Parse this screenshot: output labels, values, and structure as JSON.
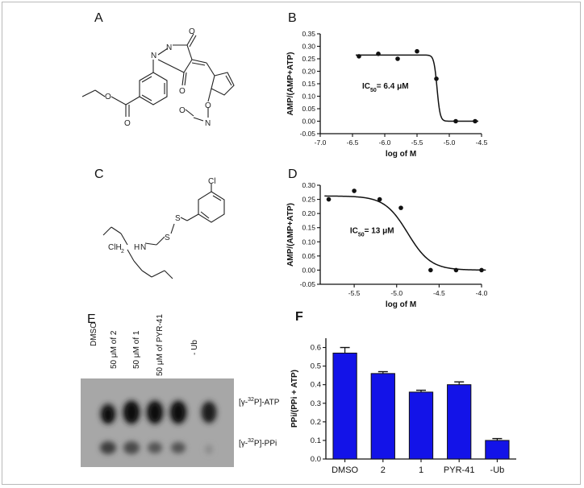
{
  "panels": {
    "a": "A",
    "b": "B",
    "c": "C",
    "d": "D",
    "e": "E",
    "f": "F"
  },
  "molecule_a": {
    "atoms": [
      "O",
      "O",
      "O",
      "N",
      "N",
      "O",
      "O",
      "O",
      "N"
    ]
  },
  "molecule_c": {
    "atoms": [
      "Cl",
      "S",
      "S",
      "N",
      "ClH",
      "2",
      "H"
    ]
  },
  "gel": {
    "lanes": [
      "DMSO",
      "50 μM of 2",
      "50 μM of 1",
      "50 μM of PYR-41",
      "- Ub"
    ],
    "band_top": "[γ-32P]-ATP",
    "band_bottom": "[γ-32P]-PPi",
    "sup_top": "32",
    "sup_bottom": "32",
    "pre_top": "[γ-",
    "post_top": "P]-ATP",
    "pre_bottom": "[γ-",
    "post_bottom": "P]-PPi"
  },
  "chart_data": [
    {
      "type": "scatter",
      "panel": "B",
      "xlabel": "log of M",
      "ylabel": "AMP/(AMP+ATP)",
      "xlim": [
        -7.0,
        -4.5
      ],
      "ylim": [
        -0.05,
        0.35
      ],
      "xticks": [
        "-7.0",
        "-6.5",
        "-6.0",
        "-5.5",
        "-5.0",
        "-4.5"
      ],
      "yticks": [
        "-0.05",
        "0.00",
        "0.05",
        "0.10",
        "0.15",
        "0.20",
        "0.25",
        "0.30",
        "0.35"
      ],
      "points": [
        [
          -6.4,
          0.26
        ],
        [
          -6.1,
          0.27
        ],
        [
          -5.8,
          0.25
        ],
        [
          -5.5,
          0.28
        ],
        [
          -5.2,
          0.17
        ],
        [
          -4.9,
          0.0
        ],
        [
          -4.6,
          0.0
        ]
      ],
      "fit": {
        "top": 0.265,
        "bottom": 0.0,
        "logIC50": -5.19,
        "hill": 18
      },
      "annotation": {
        "pre": "IC",
        "sub": "50",
        "post": "= 6.4 μM"
      }
    },
    {
      "type": "scatter",
      "panel": "D",
      "xlabel": "log of M",
      "ylabel": "AMP/(AMP+ATP)",
      "xlim": [
        -5.9,
        -4.0
      ],
      "ylim": [
        -0.05,
        0.3
      ],
      "xticks": [
        "-5.5",
        "-5.0",
        "-4.5",
        "-4.0"
      ],
      "xtickvals": [
        -5.5,
        -5.0,
        -4.5,
        -4.0
      ],
      "yticks": [
        "-0.05",
        "0.00",
        "0.05",
        "0.10",
        "0.15",
        "0.20",
        "0.25",
        "0.30"
      ],
      "points": [
        [
          -5.8,
          0.25
        ],
        [
          -5.5,
          0.28
        ],
        [
          -5.2,
          0.25
        ],
        [
          -4.95,
          0.22
        ],
        [
          -4.6,
          0.0
        ],
        [
          -4.3,
          0.0
        ],
        [
          -4.0,
          0.0
        ]
      ],
      "fit": {
        "top": 0.262,
        "bottom": 0.0,
        "logIC50": -4.87,
        "hill": 3.2
      },
      "annotation": {
        "pre": "IC",
        "sub": "50",
        "post": "= 13 μM"
      }
    },
    {
      "type": "bar",
      "panel": "F",
      "categories": [
        "DMSO",
        "2",
        "1",
        "PYR-41",
        "-Ub"
      ],
      "values": [
        0.57,
        0.46,
        0.36,
        0.4,
        0.1
      ],
      "errors": [
        0.03,
        0.01,
        0.01,
        0.015,
        0.01
      ],
      "ylabel": "PPi/(PPi + ATP)",
      "ylim": [
        0.0,
        0.65
      ],
      "yticks": [
        "0.0",
        "0.1",
        "0.2",
        "0.3",
        "0.4",
        "0.5",
        "0.6"
      ],
      "color": "#1313e8"
    }
  ]
}
